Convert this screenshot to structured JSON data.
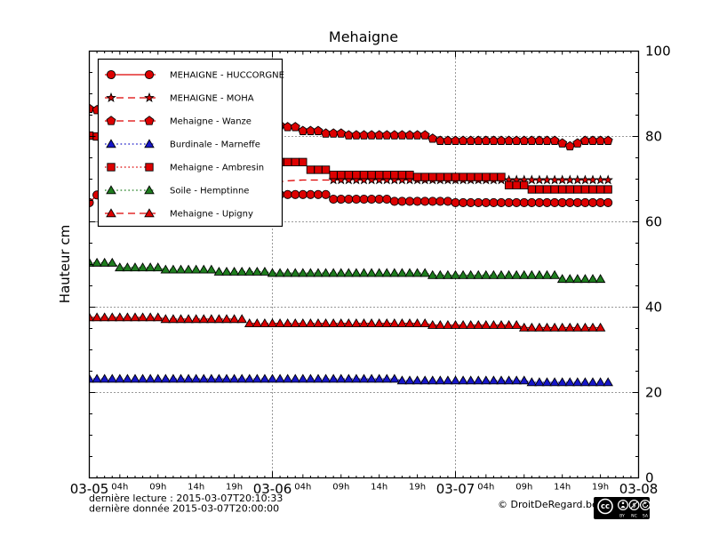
{
  "title": "Mehaigne",
  "footer": {
    "line1": "dernière lecture : 2015-03-07T20:10:33",
    "line2": "dernière donnée  2015-03-07T20:00:00",
    "copyright": "© DroitDeRegard.be",
    "cc_text": "cc",
    "license_labels": [
      "BY",
      "NC",
      "SA"
    ]
  },
  "chart_data": {
    "type": "line",
    "title": "Mehaigne",
    "xlabel": "",
    "ylabel": "Hauteur cm",
    "ylim": [
      0,
      100
    ],
    "x_unit": "hours since 2015-03-05T00:00",
    "xlim_hours": [
      0,
      72
    ],
    "grid": "dotted",
    "grid_y_values": [
      20,
      40,
      60,
      80
    ],
    "grid_x_hours": [
      24,
      48
    ],
    "legend_position": "upper left",
    "y_ticks": [
      {
        "v": 0,
        "label": "0"
      },
      {
        "v": 20,
        "label": "20"
      },
      {
        "v": 40,
        "label": "40"
      },
      {
        "v": 60,
        "label": "60"
      },
      {
        "v": 80,
        "label": "80"
      },
      {
        "v": 100,
        "label": "100"
      }
    ],
    "y_minor_step": 5,
    "x_day_ticks": [
      {
        "h": 0,
        "label": "03-05"
      },
      {
        "h": 24,
        "label": "03-06"
      },
      {
        "h": 48,
        "label": "03-07"
      },
      {
        "h": 72,
        "label": "03-08"
      }
    ],
    "x_hour_ticks": [
      {
        "h": 4,
        "label": "04h"
      },
      {
        "h": 9,
        "label": "09h"
      },
      {
        "h": 14,
        "label": "14h"
      },
      {
        "h": 19,
        "label": "19h"
      },
      {
        "h": 28,
        "label": "04h"
      },
      {
        "h": 33,
        "label": "09h"
      },
      {
        "h": 38,
        "label": "14h"
      },
      {
        "h": 43,
        "label": "19h"
      },
      {
        "h": 52,
        "label": "04h"
      },
      {
        "h": 57,
        "label": "09h"
      },
      {
        "h": 62,
        "label": "14h"
      },
      {
        "h": 67,
        "label": "19h"
      }
    ],
    "series": [
      {
        "name": "MEHAIGNE - HUCCORGNE",
        "color": "#dd0000",
        "marker": "circle",
        "line": "solid",
        "start_h": 0,
        "step_h": 1,
        "values": [
          64.5,
          66.3,
          68,
          68,
          68,
          68,
          68,
          68,
          68,
          68,
          68,
          67.5,
          67.3,
          67.2,
          67,
          67,
          66.8,
          66.6,
          66.5,
          66.4,
          66.3,
          66.2,
          66.1,
          66,
          64.6,
          66.4,
          66.4,
          66.4,
          66.4,
          66.4,
          66.4,
          66.4,
          65.3,
          65.3,
          65.3,
          65.3,
          65.3,
          65.3,
          65.3,
          65.3,
          64.8,
          64.8,
          64.8,
          64.8,
          64.8,
          64.8,
          64.8,
          64.8,
          64.5,
          64.5,
          64.5,
          64.5,
          64.5,
          64.5,
          64.5,
          64.5,
          64.5,
          64.5,
          64.5,
          64.5,
          64.5,
          64.5,
          64.5,
          64.5,
          64.5,
          64.5,
          64.5,
          64.5,
          64.5
        ]
      },
      {
        "name": "MEHAIGNE - MOHA",
        "color": "#dd0000",
        "marker": "star",
        "line": "dashed",
        "start_h": 0,
        "step_h": 1,
        "marker_from_h": 32,
        "values": [
          null,
          null,
          null,
          null,
          null,
          null,
          null,
          null,
          null,
          null,
          null,
          null,
          null,
          null,
          null,
          null,
          null,
          null,
          null,
          null,
          null,
          null,
          null,
          68.9,
          69.1,
          69.4,
          69.6,
          69.7,
          69.8,
          69.8,
          69.8,
          69.8,
          69.8,
          69.8,
          69.8,
          69.8,
          69.8,
          69.8,
          69.8,
          69.8,
          69.8,
          69.8,
          69.8,
          69.8,
          69.8,
          69.8,
          69.8,
          69.8,
          69.8,
          69.8,
          69.8,
          69.8,
          69.8,
          69.8,
          69.8,
          69.8,
          69.8,
          69.8,
          69.8,
          69.8,
          69.8,
          69.8,
          69.8,
          69.8,
          69.8,
          69.8,
          69.8,
          69.8,
          69.8
        ]
      },
      {
        "name": "Mehaigne - Wanze",
        "color": "#dd0000",
        "marker": "pentagon",
        "line": "dashed",
        "start_h": 0,
        "step_h": 1,
        "values": [
          86.5,
          86.2,
          85.9,
          85.6,
          85.3,
          85.0,
          84.7,
          84.5,
          84.3,
          84.1,
          83.9,
          83.7,
          83.6,
          83.5,
          83.4,
          83.3,
          83.2,
          83.1,
          83.0,
          83.0,
          82.9,
          82.9,
          82.8,
          82.8,
          82.6,
          82.6,
          82.2,
          82.2,
          81.3,
          81.3,
          81.3,
          80.7,
          80.7,
          80.7,
          80.3,
          80.3,
          80.3,
          80.3,
          80.3,
          80.3,
          80.3,
          80.3,
          80.3,
          80.3,
          80.3,
          79.5,
          79,
          79,
          79,
          79,
          79,
          79,
          79,
          79,
          79,
          79,
          79,
          79,
          79,
          79,
          79,
          79,
          78.4,
          77.7,
          78.4,
          79,
          79,
          79,
          79
        ]
      },
      {
        "name": "Burdinale - Marneffe",
        "color": "#1616c8",
        "marker": "triangle",
        "line": "dotted",
        "start_h": 0,
        "step_h": 1,
        "values": [
          23.2,
          23.2,
          23.2,
          23.2,
          23.2,
          23.2,
          23.2,
          23.2,
          23.2,
          23.2,
          23.2,
          23.2,
          23.2,
          23.2,
          23.2,
          23.2,
          23.2,
          23.2,
          23.2,
          23.2,
          23.2,
          23.2,
          23.2,
          23.2,
          23.2,
          23.2,
          23.2,
          23.2,
          23.2,
          23.2,
          23.2,
          23.2,
          23.2,
          23.2,
          23.2,
          23.2,
          23.2,
          23.2,
          23.2,
          23.2,
          23.2,
          22.8,
          22.8,
          22.8,
          22.8,
          22.8,
          22.8,
          22.8,
          22.8,
          22.8,
          22.8,
          22.8,
          22.8,
          22.8,
          22.8,
          22.8,
          22.8,
          22.8,
          22.4,
          22.4,
          22.4,
          22.4,
          22.4,
          22.4,
          22.4,
          22.4,
          22.4,
          22.4,
          22.4
        ]
      },
      {
        "name": "Mehaigne - Ambresin",
        "color": "#dd0000",
        "marker": "square",
        "line": "dotted",
        "start_h": 0,
        "step_h": 1,
        "values": [
          80.2,
          80.0,
          79.7,
          79.4,
          79.1,
          78.8,
          78.5,
          78.2,
          77.9,
          77.6,
          77.3,
          77.0,
          76.7,
          76.4,
          76.1,
          75.8,
          75.5,
          75.2,
          74.9,
          74.7,
          74.5,
          74.3,
          74.2,
          74.1,
          74,
          74,
          74,
          74,
          74,
          72.2,
          72.2,
          72.2,
          71,
          71,
          71,
          71,
          71,
          71,
          71,
          71,
          71,
          71,
          71,
          70.5,
          70.5,
          70.5,
          70.5,
          70.5,
          70.5,
          70.5,
          70.5,
          70.5,
          70.5,
          70.5,
          70.5,
          68.6,
          68.6,
          68.6,
          67.6,
          67.6,
          67.6,
          67.6,
          67.6,
          67.6,
          67.6,
          67.6,
          67.6,
          67.6,
          67.6
        ]
      },
      {
        "name": "Soile - Hemptinne",
        "color": "#1e7d1e",
        "marker": "triangle",
        "line": "dotted",
        "start_h": 0,
        "step_h": 1,
        "values": [
          50.4,
          50.4,
          50.4,
          50.4,
          49.3,
          49.3,
          49.3,
          49.3,
          49.3,
          49.3,
          48.8,
          48.8,
          48.8,
          48.8,
          48.8,
          48.8,
          48.8,
          48.3,
          48.3,
          48.3,
          48.3,
          48.3,
          48.3,
          48.3,
          48,
          48,
          48,
          48,
          48,
          48,
          48,
          48,
          48,
          48,
          48,
          48,
          48,
          48,
          48,
          48,
          48,
          48,
          48,
          48,
          48,
          47.5,
          47.5,
          47.5,
          47.5,
          47.5,
          47.5,
          47.5,
          47.5,
          47.5,
          47.5,
          47.5,
          47.5,
          47.5,
          47.5,
          47.5,
          47.5,
          47.5,
          46.6,
          46.6,
          46.6,
          46.6,
          46.6,
          46.6,
          null
        ]
      },
      {
        "name": "Mehaigne - Upigny",
        "color": "#dd0000",
        "marker": "triangle",
        "line": "dashed",
        "start_h": 0,
        "step_h": 1,
        "values": [
          37.6,
          37.6,
          37.6,
          37.6,
          37.6,
          37.6,
          37.6,
          37.6,
          37.6,
          37.6,
          37.2,
          37.2,
          37.2,
          37.2,
          37.2,
          37.2,
          37.2,
          37.2,
          37.2,
          37.2,
          37.2,
          36.2,
          36.2,
          36.2,
          36.2,
          36.2,
          36.2,
          36.2,
          36.2,
          36.2,
          36.2,
          36.2,
          36.2,
          36.2,
          36.2,
          36.2,
          36.2,
          36.2,
          36.2,
          36.2,
          36.2,
          36.2,
          36.2,
          36.2,
          36.2,
          35.8,
          35.8,
          35.8,
          35.8,
          35.8,
          35.8,
          35.8,
          35.8,
          35.8,
          35.8,
          35.8,
          35.8,
          35.2,
          35.2,
          35.2,
          35.2,
          35.2,
          35.2,
          35.2,
          35.2,
          35.2,
          35.2,
          35.2,
          null
        ]
      }
    ]
  }
}
